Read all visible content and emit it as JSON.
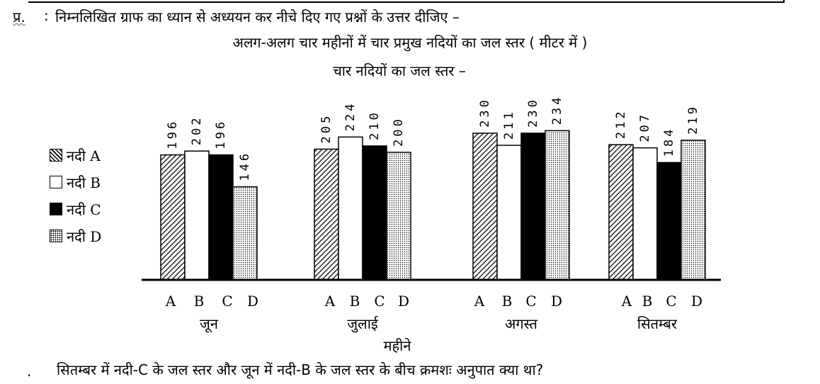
{
  "question": {
    "label": "प्र.",
    "colon": ":",
    "text": "निम्नलिखित ग्राफ का ध्यान से अध्ययन कर नीचे दिए गए प्रश्नों के उत्तर दीजिए –",
    "bottom_bullet": ".",
    "bottom_text": "सितम्बर में नदी-C के जल स्तर और जून में नदी-B के जल स्तर के बीच क्रमशः अनुपात क्या था?"
  },
  "chart_data": {
    "type": "bar",
    "title": "अलग-अलग चार महीनों में चार प्रमुख नदियों का जल स्तर ( मीटर में )",
    "subtitle": "चार नदियों का जल स्तर –",
    "xlabel": "महीने",
    "ylabel": "",
    "groups": [
      "जून",
      "जुलाई",
      "अगस्त",
      "सितम्बर"
    ],
    "bar_labels": [
      "A",
      "B",
      "C",
      "D"
    ],
    "series": [
      {
        "name": "नदी A",
        "fill": "hatch",
        "values": [
          196,
          205,
          230,
          212
        ]
      },
      {
        "name": "नदी B",
        "fill": "white",
        "values": [
          202,
          224,
          211,
          207
        ]
      },
      {
        "name": "नदी C",
        "fill": "black",
        "values": [
          196,
          210,
          230,
          184
        ]
      },
      {
        "name": "नदी D",
        "fill": "dots",
        "values": [
          146,
          200,
          234,
          219
        ]
      }
    ],
    "value_labels_shown": true,
    "legend_placement": "left",
    "grid": false
  }
}
